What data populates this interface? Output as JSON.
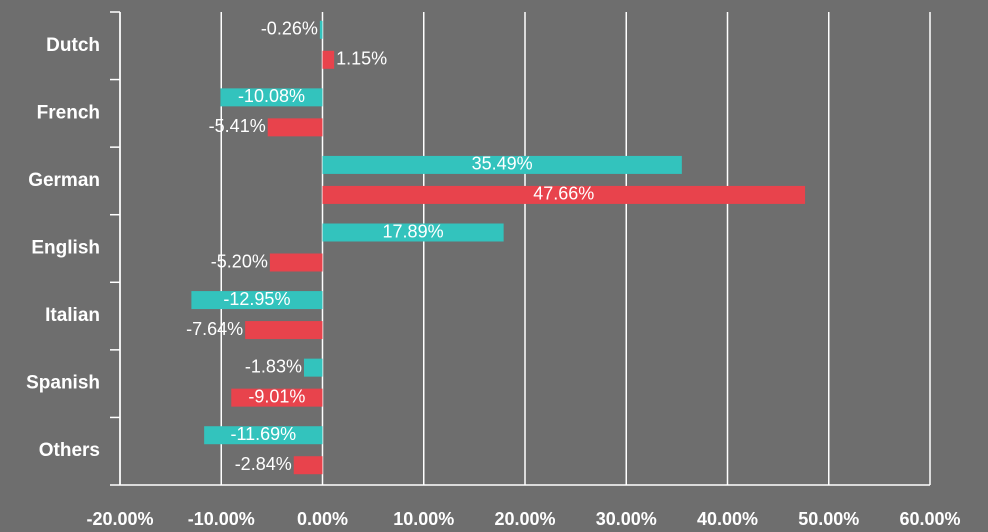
{
  "chart_data": {
    "type": "hbar",
    "categories": [
      "Dutch",
      "French",
      "German",
      "English",
      "Italian",
      "Spanish",
      "Others"
    ],
    "series": [
      {
        "color": "#33c3bd",
        "values": [
          -0.26,
          -10.08,
          35.49,
          17.89,
          -12.95,
          -1.83,
          -11.69
        ],
        "value_labels": [
          "-0.26%",
          "-10.08%",
          "35.49%",
          "17.89%",
          "-12.95%",
          "-1.83%",
          "-11.69%"
        ]
      },
      {
        "color": "#e8434c",
        "values": [
          1.15,
          -5.41,
          47.66,
          -5.2,
          -7.64,
          -9.01,
          -2.84
        ],
        "value_labels": [
          "1.15%",
          "-5.41%",
          "47.66%",
          "-5.20%",
          "-7.64%",
          "-9.01%",
          "-2.84%"
        ]
      }
    ],
    "xlim": [
      -20,
      60
    ],
    "xticks": [
      {
        "value": -20,
        "label": "-20.00%"
      },
      {
        "value": -10,
        "label": "-10.00%"
      },
      {
        "value": 0,
        "label": "0.00%"
      },
      {
        "value": 10,
        "label": "10.00%"
      },
      {
        "value": 20,
        "label": "20.00%"
      },
      {
        "value": 30,
        "label": "30.00%"
      },
      {
        "value": 40,
        "label": "40.00%"
      },
      {
        "value": 50,
        "label": "50.00%"
      },
      {
        "value": 60,
        "label": "60.00%"
      }
    ],
    "grid": true
  }
}
